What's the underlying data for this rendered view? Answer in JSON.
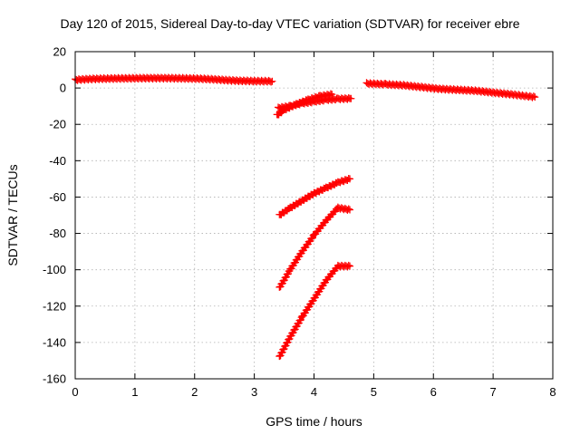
{
  "chart_data": {
    "type": "scatter",
    "title": "Day 120 of 2015, Sidereal Day-to-day VTEC variation (SDTVAR) for receiver ebre",
    "xlabel": "GPS time / hours",
    "ylabel": "SDTVAR / TECUs",
    "xlim": [
      0,
      8
    ],
    "ylim": [
      -160,
      20
    ],
    "xticks": [
      0,
      1,
      2,
      3,
      4,
      5,
      6,
      7,
      8
    ],
    "yticks": [
      20,
      0,
      -20,
      -40,
      -60,
      -80,
      -100,
      -120,
      -140,
      -160
    ],
    "grid": true,
    "marker": "plus",
    "color": "#ff0000",
    "series": [
      {
        "x": [
          0.0,
          0.3,
          0.6,
          0.9,
          1.2,
          1.5,
          1.8,
          2.1,
          2.4,
          2.7,
          3.0,
          3.3
        ],
        "values": [
          4.5,
          5.0,
          5.2,
          5.3,
          5.4,
          5.4,
          5.3,
          5.1,
          4.6,
          4.0,
          3.8,
          3.7
        ]
      },
      {
        "x": [
          3.38,
          3.5,
          3.7,
          3.9,
          4.1,
          4.3
        ],
        "values": [
          -15,
          -12,
          -9,
          -6.5,
          -4.5,
          -3.5
        ]
      },
      {
        "x": [
          3.4,
          3.6,
          3.8,
          4.0,
          4.2,
          4.4,
          4.62
        ],
        "values": [
          -11,
          -10,
          -8.5,
          -7.5,
          -6.5,
          -6.0,
          -5.8
        ]
      },
      {
        "x": [
          4.88,
          5.2,
          5.5,
          5.8,
          6.1,
          6.4,
          6.7,
          7.0,
          7.3,
          7.7
        ],
        "values": [
          2.5,
          2.0,
          1.5,
          0.5,
          -0.5,
          -1.0,
          -1.5,
          -2.5,
          -3.5,
          -5.0
        ]
      },
      {
        "x": [
          3.42,
          3.6,
          3.8,
          4.0,
          4.2,
          4.4,
          4.6
        ],
        "values": [
          -70,
          -66,
          -62,
          -58,
          -55,
          -52,
          -50
        ]
      },
      {
        "x": [
          3.42,
          3.6,
          3.8,
          4.0,
          4.2,
          4.4,
          4.6
        ],
        "values": [
          -110,
          -100,
          -90,
          -81,
          -73,
          -66,
          -67
        ]
      },
      {
        "x": [
          3.42,
          3.6,
          3.8,
          4.0,
          4.2,
          4.4,
          4.6
        ],
        "values": [
          -148,
          -137,
          -126,
          -116,
          -106,
          -98,
          -98
        ]
      }
    ]
  }
}
